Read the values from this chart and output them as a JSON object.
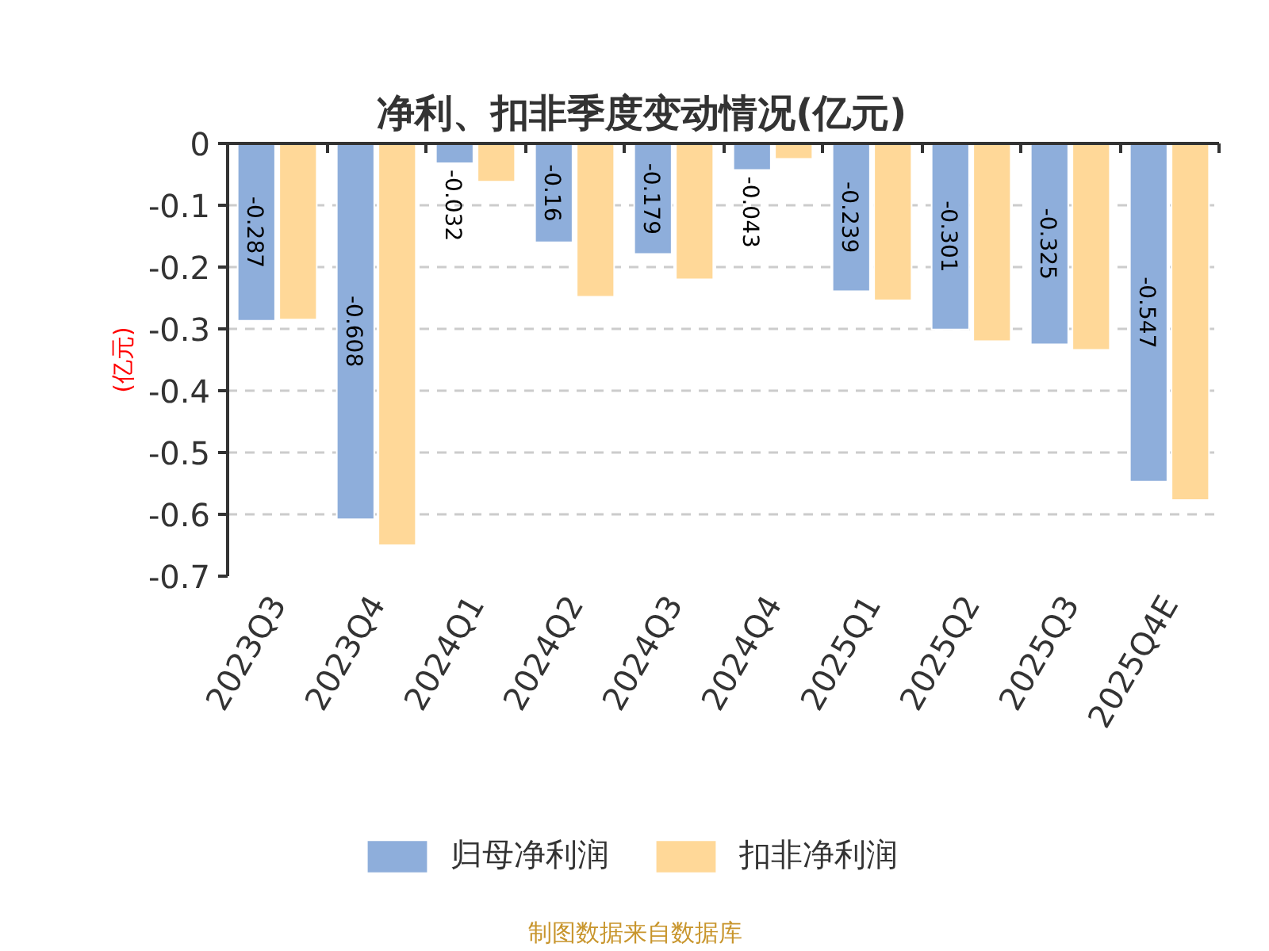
{
  "chart_data": {
    "type": "bar",
    "title": "净利、扣非季度变动情况(亿元)",
    "ylabel": "(亿元)",
    "categories": [
      "2023Q3",
      "2023Q4",
      "2024Q1",
      "2024Q2",
      "2024Q3",
      "2024Q4",
      "2025Q1",
      "2025Q2",
      "2025Q3",
      "2025Q4E"
    ],
    "series": [
      {
        "name": "归母净利润",
        "color": "#8eaedb",
        "values": [
          -0.287,
          -0.608,
          -0.032,
          -0.16,
          -0.179,
          -0.043,
          -0.239,
          -0.301,
          -0.325,
          -0.547
        ],
        "value_labels": [
          "-0.287",
          "-0.608",
          "-0.032",
          "-0.16",
          "-0.179",
          "-0.043",
          "-0.239",
          "-0.301",
          "-0.325",
          "-0.547"
        ]
      },
      {
        "name": "扣非净利润",
        "color": "#ffd898",
        "values": [
          -0.285,
          -0.65,
          -0.062,
          -0.248,
          -0.22,
          -0.025,
          -0.254,
          -0.32,
          -0.334,
          -0.577
        ]
      }
    ],
    "ylim": [
      -0.7,
      0
    ],
    "yticks": [
      0,
      -0.1,
      -0.2,
      -0.3,
      -0.4,
      -0.5,
      -0.6,
      -0.7
    ],
    "grid": "y",
    "legend": "bottom",
    "annotations": [
      "制图数据来自数据库"
    ]
  }
}
